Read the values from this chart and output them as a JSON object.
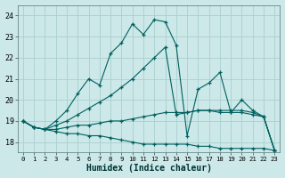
{
  "xlabel": "Humidex (Indice chaleur)",
  "bg_color": "#cce8e8",
  "grid_color": "#aacfcf",
  "line_color": "#006060",
  "xlim": [
    -0.5,
    23.5
  ],
  "ylim": [
    17.5,
    24.5
  ],
  "yticks": [
    18,
    19,
    20,
    21,
    22,
    23,
    24
  ],
  "xticks": [
    0,
    1,
    2,
    3,
    4,
    5,
    6,
    7,
    8,
    9,
    10,
    11,
    12,
    13,
    14,
    15,
    16,
    17,
    18,
    19,
    20,
    21,
    22,
    23
  ],
  "series": [
    [
      19.0,
      18.7,
      18.6,
      18.5,
      18.4,
      18.4,
      18.3,
      18.3,
      18.2,
      18.1,
      18.0,
      17.9,
      17.9,
      17.9,
      17.9,
      17.9,
      17.8,
      17.8,
      17.7,
      17.7,
      17.7,
      17.7,
      17.7,
      17.6
    ],
    [
      19.0,
      18.7,
      18.6,
      18.6,
      18.7,
      18.8,
      18.8,
      18.9,
      19.0,
      19.0,
      19.1,
      19.2,
      19.3,
      19.4,
      19.4,
      19.4,
      19.5,
      19.5,
      19.5,
      19.5,
      19.5,
      19.4,
      19.2,
      17.6
    ],
    [
      19.0,
      18.7,
      18.6,
      18.8,
      19.0,
      19.3,
      19.6,
      19.9,
      20.2,
      20.6,
      21.0,
      21.5,
      22.0,
      22.5,
      19.3,
      19.4,
      19.5,
      19.5,
      19.4,
      19.4,
      19.4,
      19.3,
      19.2,
      17.6
    ],
    [
      19.0,
      18.7,
      18.6,
      19.0,
      19.5,
      20.3,
      21.0,
      20.7,
      22.2,
      22.7,
      23.6,
      23.1,
      23.8,
      23.7,
      22.6,
      18.3,
      20.5,
      20.8,
      21.3,
      19.4,
      20.0,
      19.5,
      19.2,
      17.6
    ]
  ]
}
